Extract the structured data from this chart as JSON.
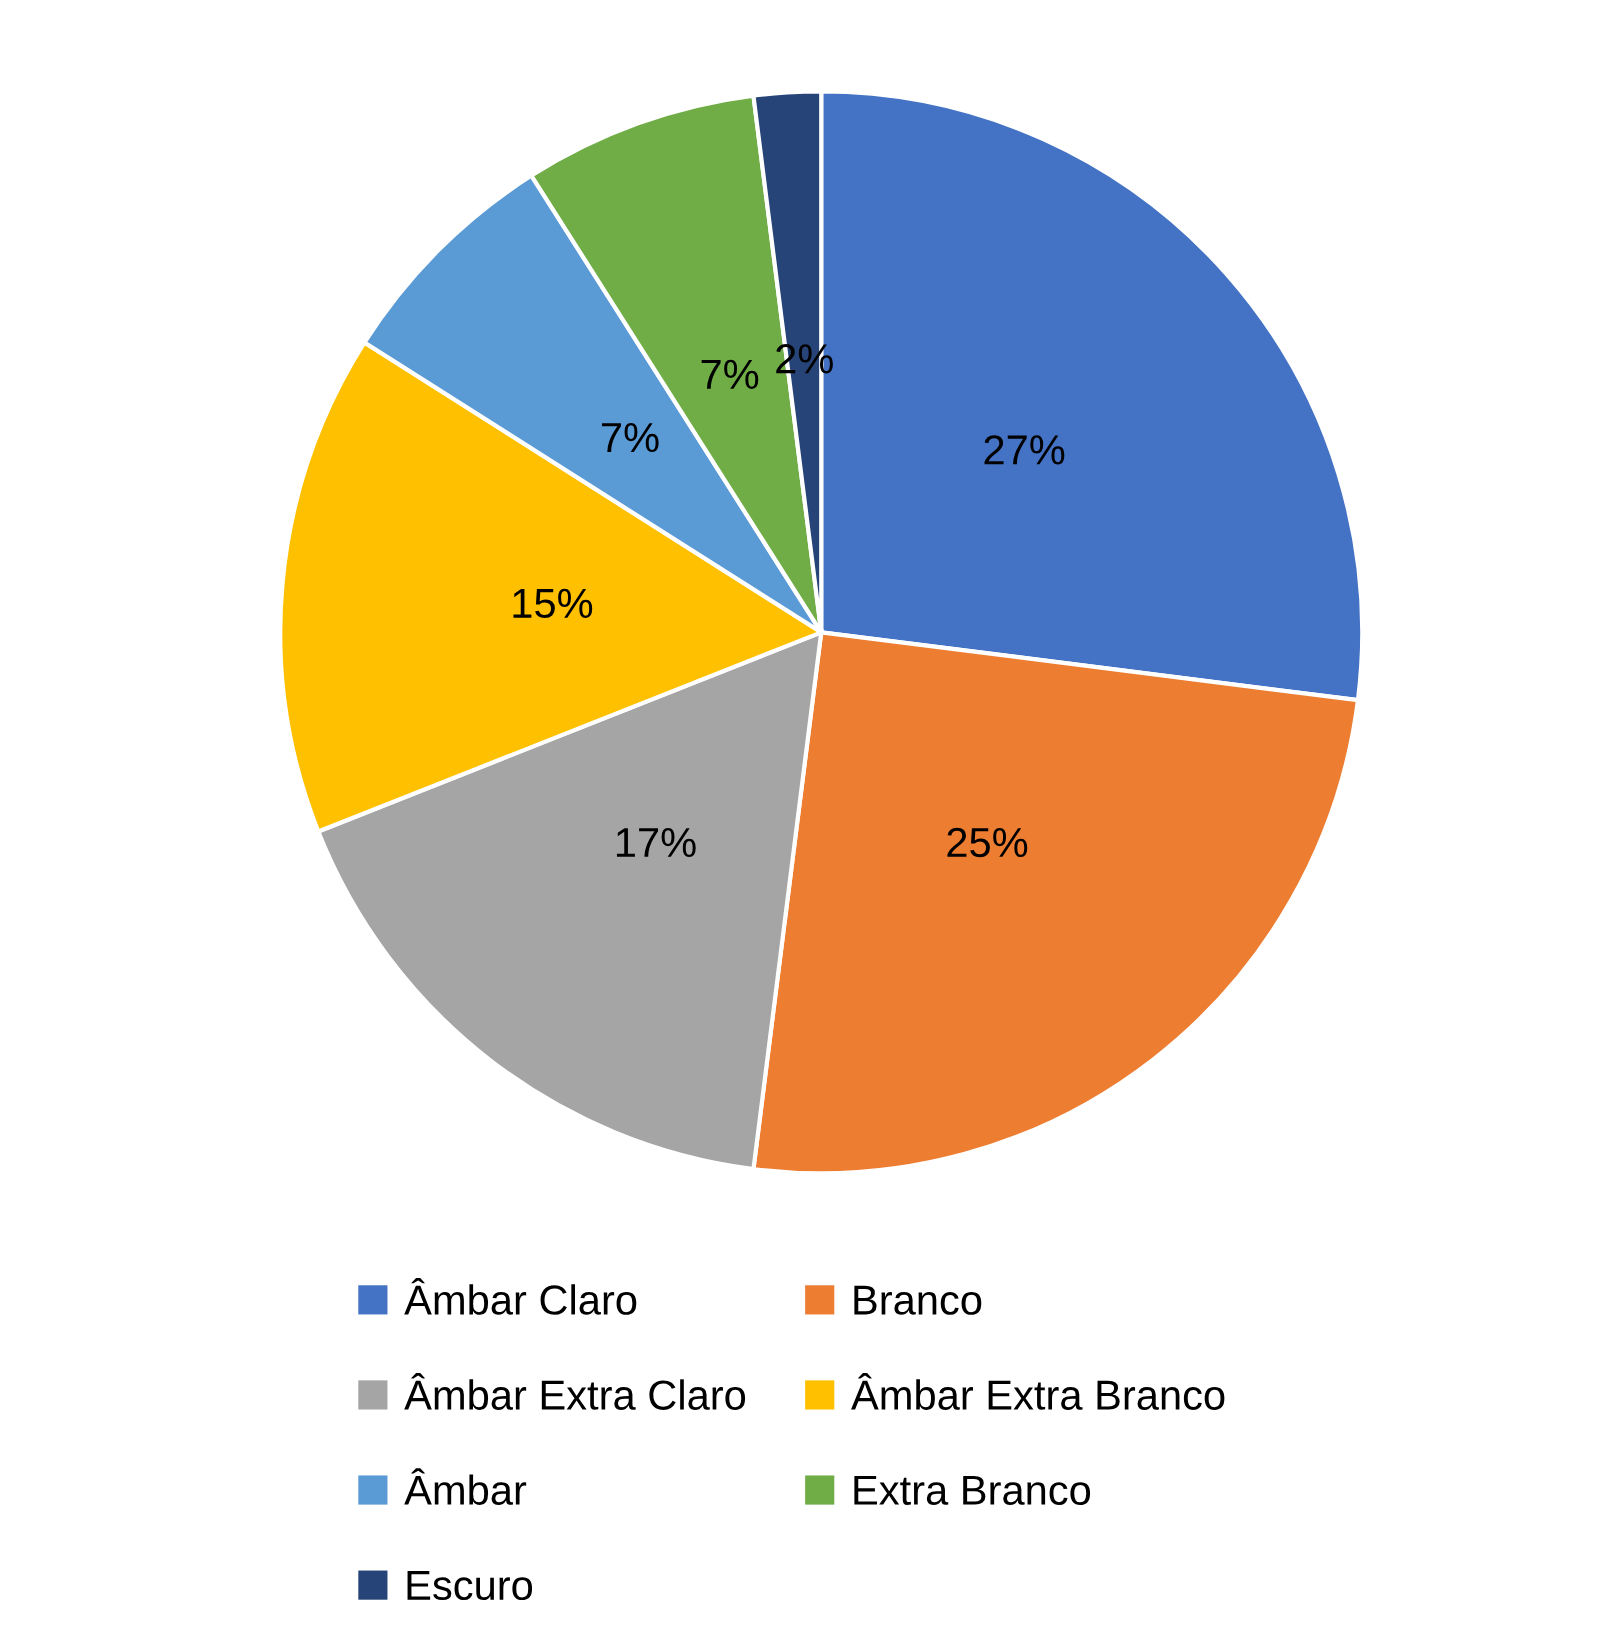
{
  "chart_data": {
    "type": "pie",
    "categories": [
      "Âmbar Claro",
      "Branco",
      "Âmbar Extra Claro",
      "Âmbar Extra Branco",
      "Âmbar",
      "Extra Branco",
      "Escuro"
    ],
    "values": [
      27,
      25,
      17,
      15,
      7,
      7,
      2
    ],
    "colors": [
      "#4472c4",
      "#ed7d31",
      "#a5a5a5",
      "#ffc000",
      "#5b9bd5",
      "#70ad47",
      "#264478"
    ],
    "value_labels": [
      "27%",
      "25%",
      "17%",
      "15%",
      "7%",
      "7%",
      "2%"
    ],
    "legend": "bottom"
  }
}
